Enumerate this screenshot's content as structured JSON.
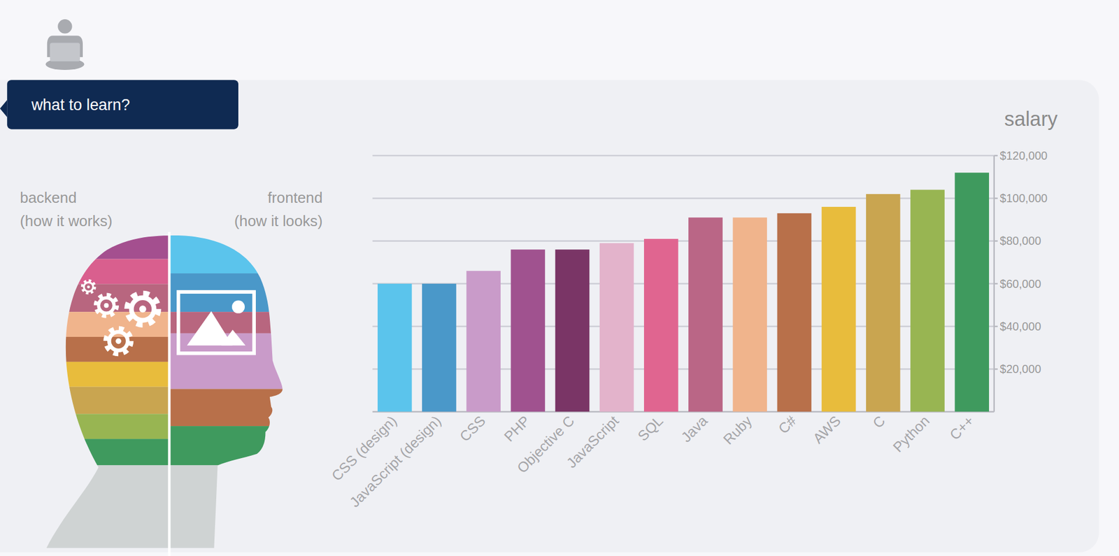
{
  "header": {
    "label": "what to learn?"
  },
  "illustration": {
    "left": {
      "title": "backend",
      "subtitle": "(how it works)"
    },
    "right": {
      "title": "frontend",
      "subtitle": "(how it looks)"
    }
  },
  "chart_data": {
    "type": "bar",
    "title": "salary",
    "categories": [
      "CSS (design)",
      "JavaScript (design)",
      "CSS",
      "PHP",
      "Objective C",
      "JavaScript",
      "SQL",
      "Java",
      "Ruby",
      "C#",
      "AWS",
      "C",
      "Python",
      "C++"
    ],
    "values": [
      60000,
      60000,
      66000,
      76000,
      76000,
      79000,
      81000,
      91000,
      91000,
      93000,
      96000,
      102000,
      104000,
      112000
    ],
    "colors": [
      "#5bc4ec",
      "#4a98c9",
      "#c99bc9",
      "#a0528f",
      "#7a3566",
      "#e3b3cb",
      "#e06590",
      "#ba6686",
      "#f0b48c",
      "#b8704a",
      "#e8bc3c",
      "#c9a550",
      "#98b552",
      "#3f9a5e"
    ],
    "ylim": [
      0,
      120000
    ],
    "yticks": [
      {
        "value": 20000,
        "label": "$20,000"
      },
      {
        "value": 40000,
        "label": "$40,000"
      },
      {
        "value": 60000,
        "label": "$60,000"
      },
      {
        "value": 80000,
        "label": "$80,000"
      },
      {
        "value": 100000,
        "label": "$100,000"
      },
      {
        "value": 120000,
        "label": "$120,000"
      }
    ],
    "grid": true
  }
}
